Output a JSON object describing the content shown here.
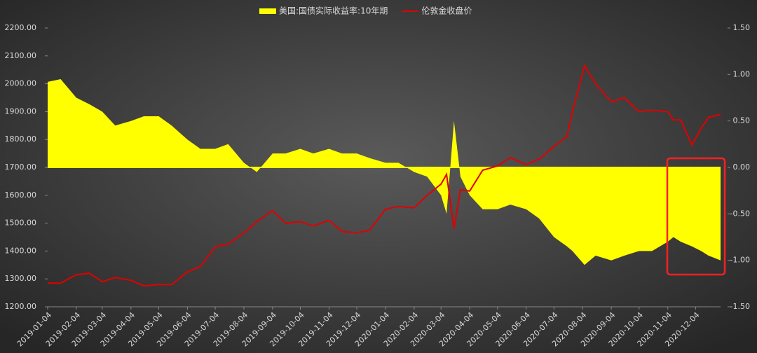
{
  "chart_data": {
    "type": "area-line",
    "x": [
      "2019-01-04",
      "2019-01-18",
      "2019-02-04",
      "2019-02-18",
      "2019-03-04",
      "2019-03-18",
      "2019-04-04",
      "2019-04-18",
      "2019-05-04",
      "2019-05-18",
      "2019-06-04",
      "2019-06-18",
      "2019-07-04",
      "2019-07-18",
      "2019-08-04",
      "2019-08-18",
      "2019-09-04",
      "2019-09-18",
      "2019-10-04",
      "2019-10-18",
      "2019-11-04",
      "2019-11-18",
      "2019-12-04",
      "2019-12-18",
      "2020-01-04",
      "2020-01-18",
      "2020-02-04",
      "2020-02-18",
      "2020-03-04",
      "2020-03-10",
      "2020-03-18",
      "2020-03-25",
      "2020-04-04",
      "2020-04-18",
      "2020-05-04",
      "2020-05-18",
      "2020-06-04",
      "2020-06-18",
      "2020-07-04",
      "2020-07-18",
      "2020-07-24",
      "2020-08-06",
      "2020-08-18",
      "2020-09-04",
      "2020-09-18",
      "2020-10-04",
      "2020-10-18",
      "2020-11-04",
      "2020-11-10",
      "2020-11-18",
      "2020-11-30",
      "2020-12-10",
      "2020-12-18",
      "2020-12-31"
    ],
    "series": [
      {
        "name": "美国:国债实际收益率:10年期",
        "color": "#ffff00",
        "kind": "area",
        "axis": "y2",
        "values": [
          0.92,
          0.95,
          0.75,
          0.68,
          0.6,
          0.45,
          0.5,
          0.55,
          0.55,
          0.45,
          0.3,
          0.2,
          0.2,
          0.25,
          0.05,
          -0.05,
          0.15,
          0.15,
          0.2,
          0.15,
          0.2,
          0.15,
          0.15,
          0.1,
          0.05,
          0.05,
          -0.05,
          -0.1,
          -0.3,
          -0.5,
          0.5,
          -0.1,
          -0.3,
          -0.45,
          -0.45,
          -0.4,
          -0.45,
          -0.55,
          -0.75,
          -0.85,
          -0.9,
          -1.05,
          -0.95,
          -1.0,
          -0.95,
          -0.9,
          -0.9,
          -0.8,
          -0.75,
          -0.8,
          -0.85,
          -0.9,
          -0.95,
          -1.0
        ]
      },
      {
        "name": "伦敦金收盘价",
        "color": "#e00000",
        "kind": "line",
        "values": [
          1285,
          1285,
          1315,
          1320,
          1290,
          1305,
          1295,
          1275,
          1280,
          1280,
          1325,
          1345,
          1415,
          1425,
          1465,
          1505,
          1545,
          1500,
          1505,
          1490,
          1510,
          1470,
          1465,
          1475,
          1550,
          1560,
          1555,
          1600,
          1640,
          1675,
          1480,
          1620,
          1615,
          1690,
          1705,
          1735,
          1710,
          1730,
          1775,
          1810,
          1900,
          2065,
          2000,
          1935,
          1950,
          1900,
          1905,
          1900,
          1870,
          1870,
          1780,
          1840,
          1880,
          1890
        ]
      }
    ],
    "xlim": [
      "2019-01-04",
      "2020-12-31"
    ],
    "xticks": [
      "2019-01-04",
      "2019-02-04",
      "2019-03-04",
      "2019-04-04",
      "2019-05-04",
      "2019-06-04",
      "2019-07-04",
      "2019-08-04",
      "2019-09-04",
      "2019-10-04",
      "2019-11-04",
      "2019-12-04",
      "2020-01-04",
      "2020-02-04",
      "2020-03-04",
      "2020-04-04",
      "2020-05-04",
      "2020-06-04",
      "2020-07-04",
      "2020-08-04",
      "2020-09-04",
      "2020-10-04",
      "2020-11-04",
      "2020-12-04"
    ],
    "ylim": [
      1200,
      2200
    ],
    "yticks": [
      {
        "value": 1200,
        "label": "1200.00"
      },
      {
        "value": 1300,
        "label": "1300.00"
      },
      {
        "value": 1400,
        "label": "1400.00"
      },
      {
        "value": 1500,
        "label": "1500.00"
      },
      {
        "value": 1600,
        "label": "1600.00"
      },
      {
        "value": 1700,
        "label": "1700.00"
      },
      {
        "value": 1800,
        "label": "1800.00"
      },
      {
        "value": 1900,
        "label": "1900.00"
      },
      {
        "value": 2000,
        "label": "2000.00"
      },
      {
        "value": 2100,
        "label": "2100.00"
      },
      {
        "value": 2200,
        "label": "2200.00"
      }
    ],
    "y2lim": [
      -1.5,
      1.5
    ],
    "y2ticks": [
      {
        "value": -1.5,
        "label": "-1.50"
      },
      {
        "value": -1,
        "label": "-1.00"
      },
      {
        "value": -0.5,
        "label": "-0.50"
      },
      {
        "value": 0,
        "label": "0.00"
      },
      {
        "value": 0.5,
        "label": "0.50"
      },
      {
        "value": 1,
        "label": "1.00"
      },
      {
        "value": 1.5,
        "label": "1.50"
      }
    ],
    "legend": "top"
  }
}
